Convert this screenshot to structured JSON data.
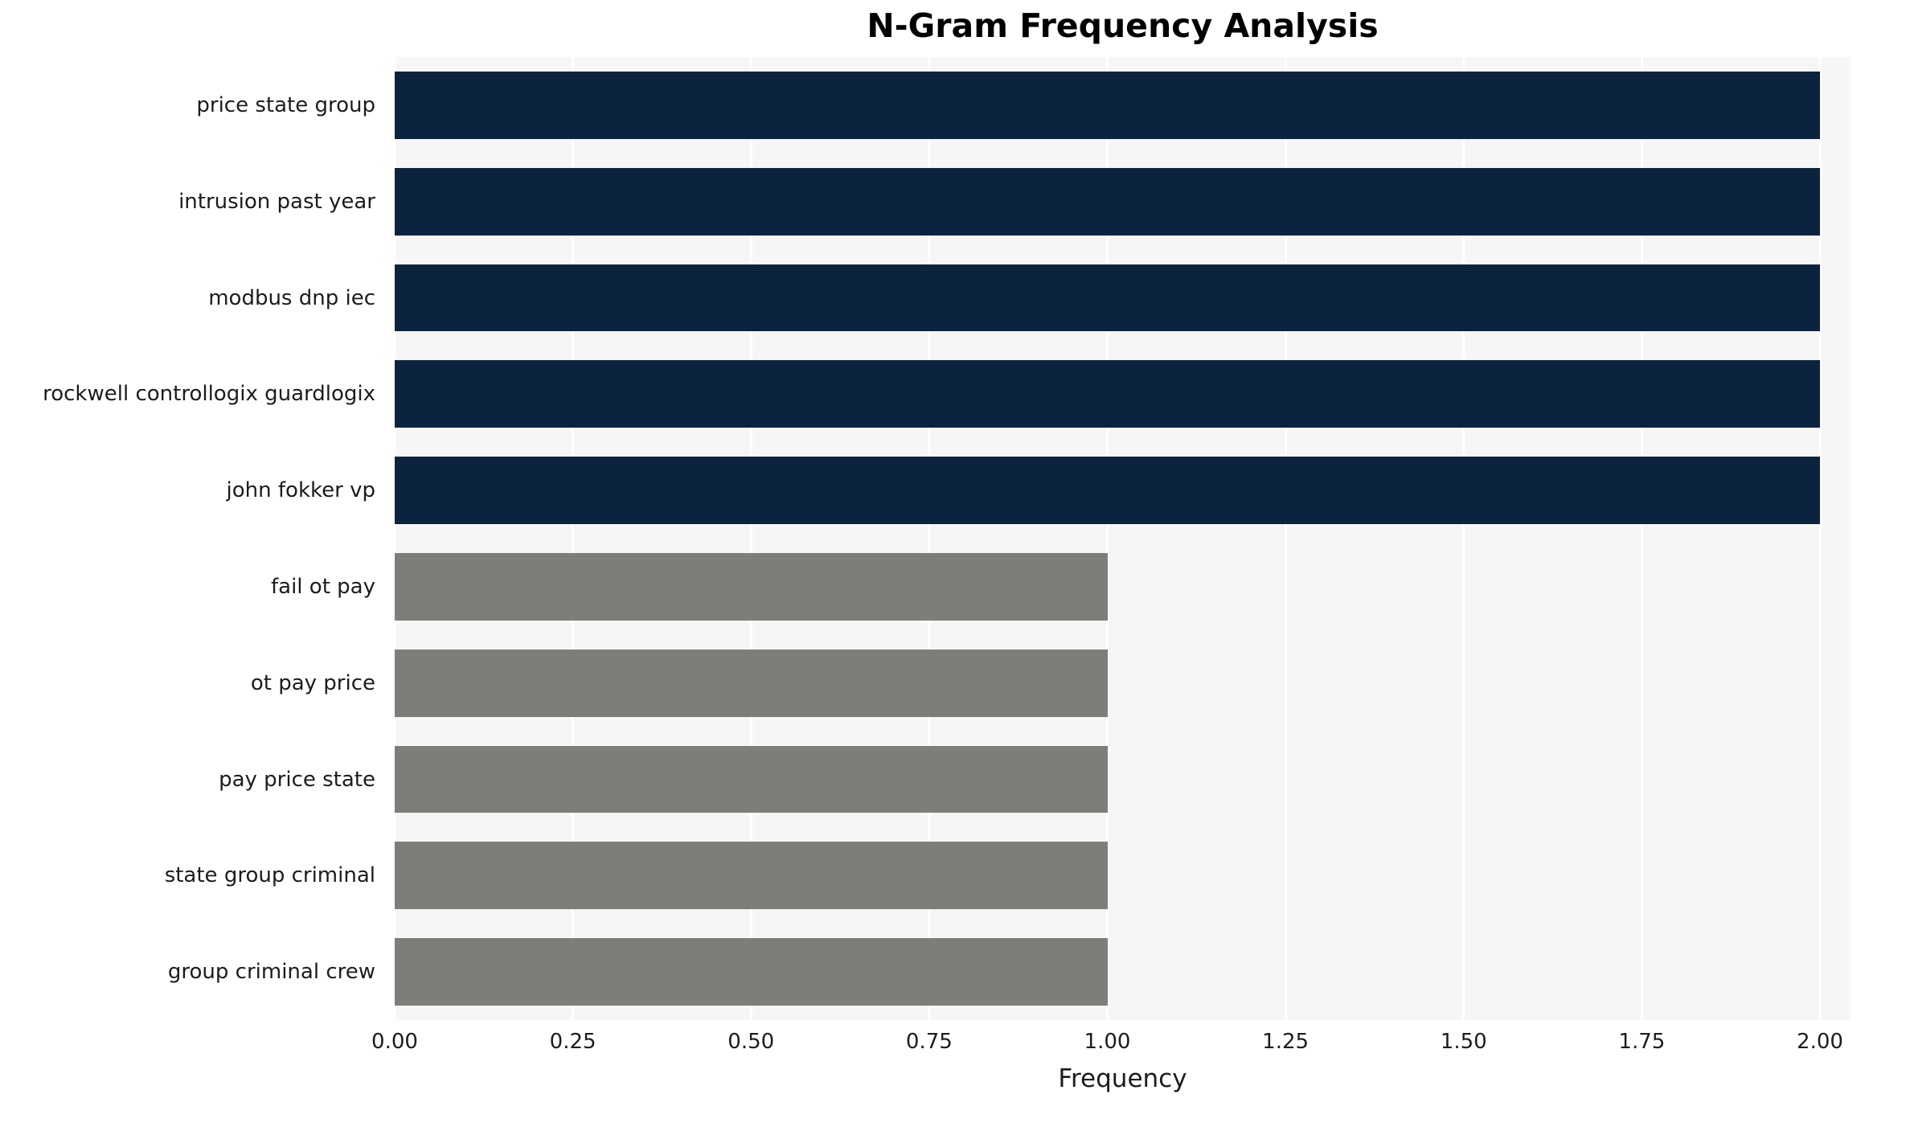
{
  "chart_data": {
    "type": "bar",
    "orientation": "horizontal",
    "title": "N-Gram Frequency Analysis",
    "xlabel": "Frequency",
    "ylabel": "",
    "categories": [
      "price state group",
      "intrusion past year",
      "modbus dnp iec",
      "rockwell controllogix guardlogix",
      "john fokker vp",
      "fail ot pay",
      "ot pay price",
      "pay price state",
      "state group criminal",
      "group criminal crew"
    ],
    "values": [
      2,
      2,
      2,
      2,
      2,
      1,
      1,
      1,
      1,
      1
    ],
    "bar_colors": [
      "#0c2340",
      "#0c2340",
      "#0c2340",
      "#0c2340",
      "#0c2340",
      "#7e7d79",
      "#7e7d79",
      "#7e7d79",
      "#7e7d79",
      "#7e7d79"
    ],
    "xlim": [
      0,
      2.0
    ],
    "xticks": [
      0,
      0.25,
      0.5,
      0.75,
      1.0,
      1.25,
      1.5,
      1.75,
      2.0
    ],
    "xtick_labels": [
      "0.00",
      "0.25",
      "0.50",
      "0.75",
      "1.00",
      "1.25",
      "1.50",
      "1.75",
      "2.00"
    ],
    "grid": "vertical-white-lines",
    "legend": "none",
    "colors": {
      "high_frequency_bar": "#0c2340",
      "low_frequency_bar": "#7e7d79",
      "plot_background": "#f6f6f6",
      "grid_line": "#ffffff",
      "text": "#1c1c1c",
      "title_text": "#000000"
    }
  }
}
